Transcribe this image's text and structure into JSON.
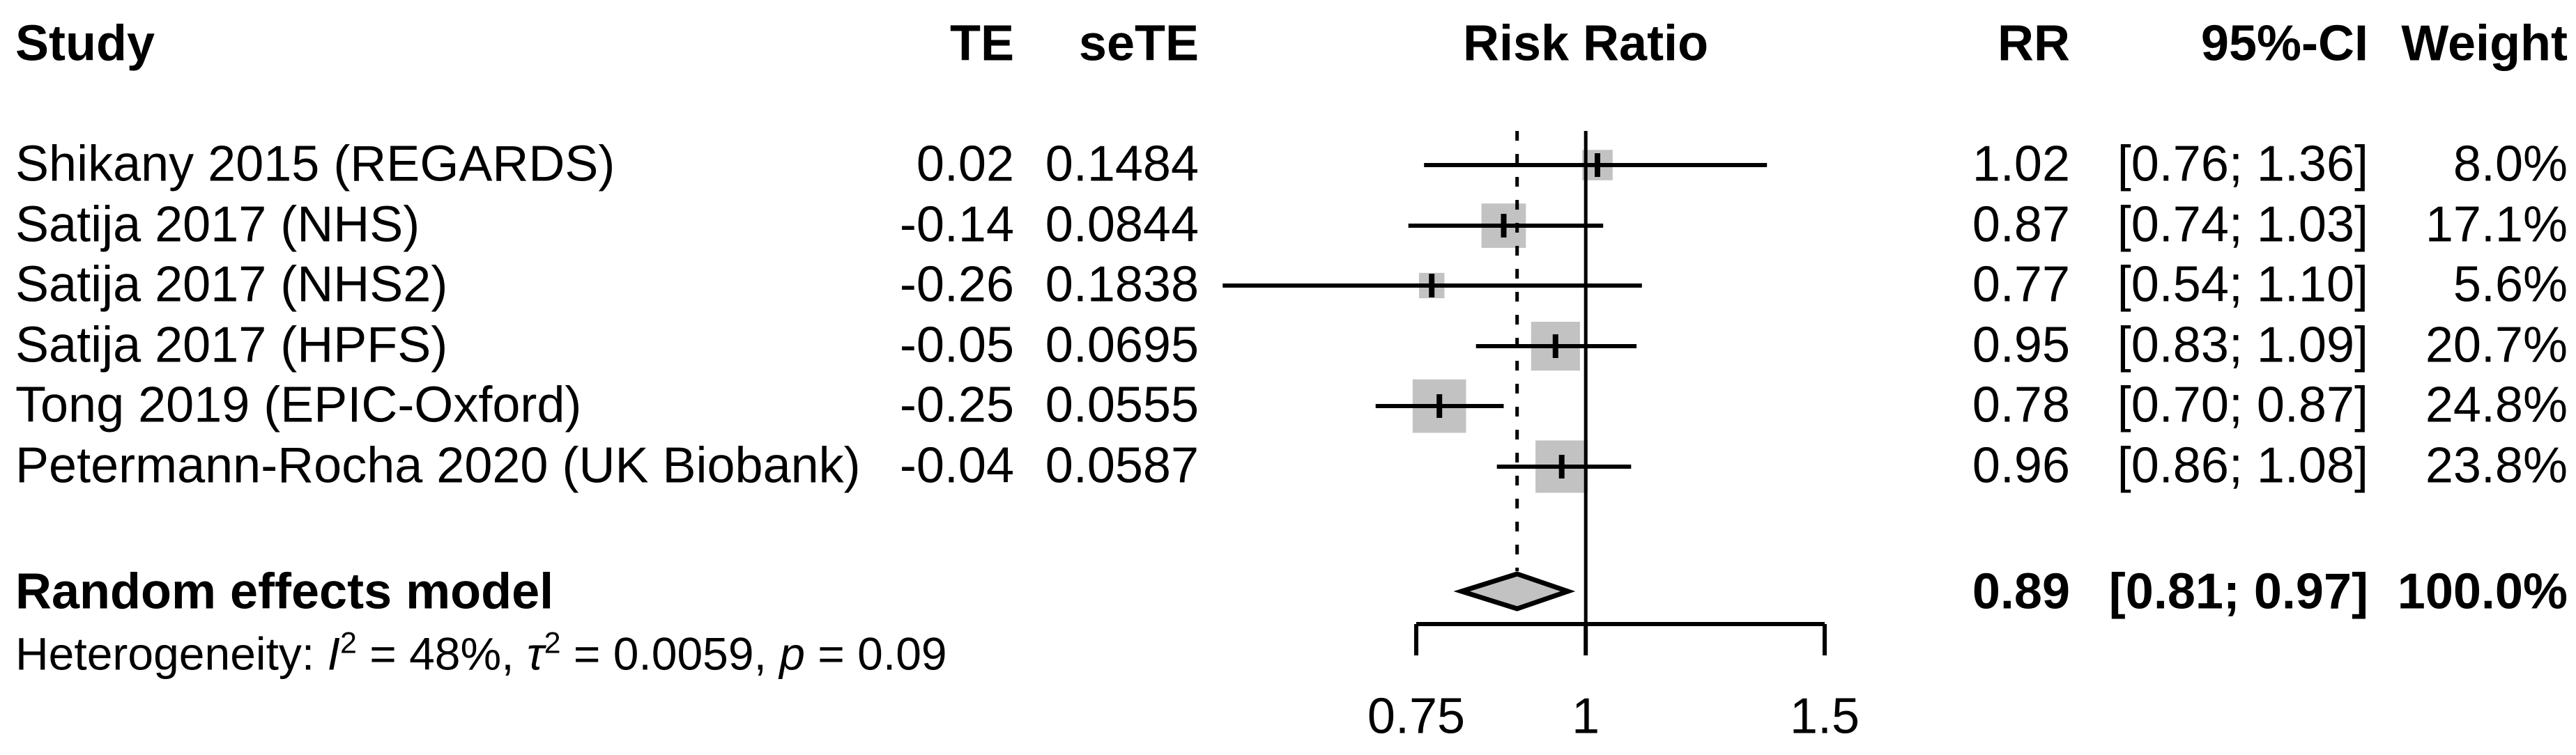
{
  "chart_data": {
    "type": "forest",
    "x_scale": "log",
    "x_range": [
      0.75,
      1.5
    ],
    "axis_ticks": [
      0.75,
      1,
      1.5
    ],
    "tick_labels": [
      "0.75",
      "1",
      "1.5"
    ],
    "ref_value": 1,
    "pooled_value": 0.89,
    "grid": false,
    "columns": [
      "Study",
      "TE",
      "seTE",
      "Risk Ratio",
      "RR",
      "95%-CI",
      "Weight"
    ],
    "studies": [
      {
        "name": "Shikany 2015 (REGARDS)",
        "te": "0.02",
        "sete": "0.1484",
        "rr": 1.02,
        "ci_lo": 0.76,
        "ci_hi": 1.36,
        "weight_pct": 8.0,
        "rr_text": "1.02",
        "ci_text": "[0.76; 1.36]",
        "weight_text": "8.0%"
      },
      {
        "name": "Satija 2017 (NHS)",
        "te": "-0.14",
        "sete": "0.0844",
        "rr": 0.87,
        "ci_lo": 0.74,
        "ci_hi": 1.03,
        "weight_pct": 17.1,
        "rr_text": "0.87",
        "ci_text": "[0.74; 1.03]",
        "weight_text": "17.1%"
      },
      {
        "name": "Satija 2017 (NHS2)",
        "te": "-0.26",
        "sete": "0.1838",
        "rr": 0.77,
        "ci_lo": 0.54,
        "ci_hi": 1.1,
        "weight_pct": 5.6,
        "rr_text": "0.77",
        "ci_text": "[0.54; 1.10]",
        "weight_text": "5.6%"
      },
      {
        "name": "Satija 2017 (HPFS)",
        "te": "-0.05",
        "sete": "0.0695",
        "rr": 0.95,
        "ci_lo": 0.83,
        "ci_hi": 1.09,
        "weight_pct": 20.7,
        "rr_text": "0.95",
        "ci_text": "[0.83; 1.09]",
        "weight_text": "20.7%"
      },
      {
        "name": "Tong 2019 (EPIC-Oxford)",
        "te": "-0.25",
        "sete": "0.0555",
        "rr": 0.78,
        "ci_lo": 0.7,
        "ci_hi": 0.87,
        "weight_pct": 24.8,
        "rr_text": "0.78",
        "ci_text": "[0.70; 0.87]",
        "weight_text": "24.8%"
      },
      {
        "name": "Petermann-Rocha 2020 (UK Biobank)",
        "te": "-0.04",
        "sete": "0.0587",
        "rr": 0.96,
        "ci_lo": 0.86,
        "ci_hi": 1.08,
        "weight_pct": 23.8,
        "rr_text": "0.96",
        "ci_text": "[0.86; 1.08]",
        "weight_text": "23.8%"
      }
    ],
    "pooled": {
      "name": "Random effects model",
      "rr": 0.89,
      "ci_lo": 0.81,
      "ci_hi": 0.97,
      "weight_pct": 100.0,
      "rr_text": "0.89",
      "ci_text": "[0.81; 0.97]",
      "weight_text": "100.0%"
    },
    "colors": {
      "square": "#c2c2c2",
      "diamond_fill": "#c2c2c2",
      "line": "#000000"
    }
  },
  "heterogeneity": {
    "prefix": "Heterogeneity: ",
    "i": "I",
    "i_sup": "2",
    "i_rest": " = 48%, ",
    "tau": "τ",
    "tau_sup": "2",
    "tau_rest": " = 0.0059, ",
    "p": "p",
    "p_rest": " = 0.09"
  }
}
